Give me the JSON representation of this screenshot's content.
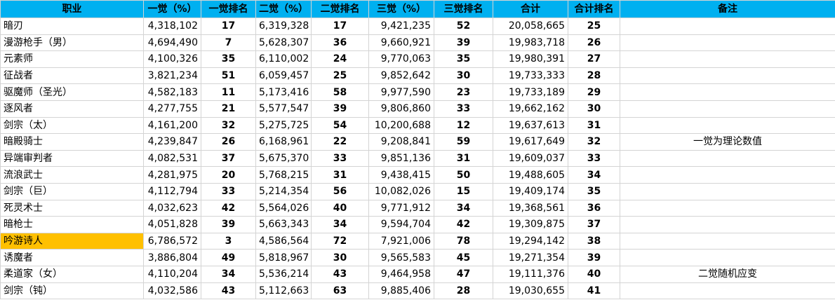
{
  "headers": [
    "职业",
    "一觉（%）",
    "一觉排名",
    "二觉（%）",
    "二觉排名",
    "三觉（%）",
    "三觉排名",
    "合计",
    "合计排名",
    "备注"
  ],
  "rows": [
    [
      "暗刃",
      "4,318,102",
      "17",
      "6,319,328",
      "17",
      "9,421,235",
      "52",
      "20,058,665",
      "25",
      ""
    ],
    [
      "漫游枪手（男）",
      "4,694,490",
      "7",
      "5,628,307",
      "36",
      "9,660,921",
      "39",
      "19,983,718",
      "26",
      ""
    ],
    [
      "元素师",
      "4,100,326",
      "35",
      "6,110,002",
      "24",
      "9,770,063",
      "35",
      "19,980,391",
      "27",
      ""
    ],
    [
      "征战者",
      "3,821,234",
      "51",
      "6,059,457",
      "25",
      "9,852,642",
      "30",
      "19,733,333",
      "28",
      ""
    ],
    [
      "驱魔师（圣光）",
      "4,582,183",
      "11",
      "5,173,416",
      "58",
      "9,977,590",
      "23",
      "19,733,189",
      "29",
      ""
    ],
    [
      "逐风者",
      "4,277,755",
      "21",
      "5,577,547",
      "39",
      "9,806,860",
      "33",
      "19,662,162",
      "30",
      ""
    ],
    [
      "剑宗（太）",
      "4,161,200",
      "32",
      "5,275,725",
      "54",
      "10,200,688",
      "12",
      "19,637,613",
      "31",
      ""
    ],
    [
      "暗殿骑士",
      "4,239,847",
      "26",
      "6,168,961",
      "22",
      "9,208,841",
      "59",
      "19,617,649",
      "32",
      "一觉为理论数值"
    ],
    [
      "异端审判者",
      "4,082,531",
      "37",
      "5,675,370",
      "33",
      "9,851,136",
      "31",
      "19,609,037",
      "33",
      ""
    ],
    [
      "流浪武士",
      "4,281,975",
      "20",
      "5,768,215",
      "31",
      "9,438,415",
      "50",
      "19,488,605",
      "34",
      ""
    ],
    [
      "剑宗（巨）",
      "4,112,794",
      "33",
      "5,214,354",
      "56",
      "10,082,026",
      "15",
      "19,409,174",
      "35",
      ""
    ],
    [
      "死灵术士",
      "4,032,623",
      "42",
      "5,564,026",
      "40",
      "9,771,912",
      "34",
      "19,368,561",
      "36",
      ""
    ],
    [
      "暗枪士",
      "4,051,828",
      "39",
      "5,663,343",
      "34",
      "9,594,704",
      "42",
      "19,309,875",
      "37",
      ""
    ],
    [
      "吟游诗人",
      "6,786,572",
      "3",
      "4,586,564",
      "72",
      "7,921,006",
      "78",
      "19,294,142",
      "38",
      ""
    ],
    [
      "诱魔者",
      "3,886,804",
      "49",
      "5,818,967",
      "30",
      "9,565,583",
      "45",
      "19,271,354",
      "39",
      ""
    ],
    [
      "柔道家（女）",
      "4,110,204",
      "34",
      "5,536,214",
      "43",
      "9,464,958",
      "47",
      "19,111,376",
      "40",
      "二觉随机应变"
    ],
    [
      "剑宗（钝）",
      "4,032,586",
      "43",
      "5,112,663",
      "63",
      "9,885,406",
      "28",
      "19,030,655",
      "41",
      ""
    ]
  ],
  "highlight_row_name": "吟游诗人",
  "colors": {
    "header_bg": "#00b0f0",
    "highlight_bg": "#ffc000",
    "grid": "#d4d4d4"
  }
}
